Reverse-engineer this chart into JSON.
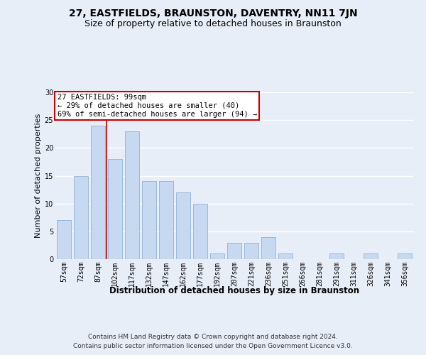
{
  "title": "27, EASTFIELDS, BRAUNSTON, DAVENTRY, NN11 7JN",
  "subtitle": "Size of property relative to detached houses in Braunston",
  "xlabel": "Distribution of detached houses by size in Braunston",
  "ylabel": "Number of detached properties",
  "categories": [
    "57sqm",
    "72sqm",
    "87sqm",
    "102sqm",
    "117sqm",
    "132sqm",
    "147sqm",
    "162sqm",
    "177sqm",
    "192sqm",
    "207sqm",
    "221sqm",
    "236sqm",
    "251sqm",
    "266sqm",
    "281sqm",
    "291sqm",
    "311sqm",
    "326sqm",
    "341sqm",
    "356sqm"
  ],
  "values": [
    7,
    15,
    24,
    18,
    23,
    14,
    14,
    12,
    10,
    1,
    3,
    3,
    4,
    1,
    0,
    0,
    1,
    0,
    1,
    0,
    1
  ],
  "bar_color": "#c6d9f0",
  "bar_edge_color": "#8db3d8",
  "property_line_color": "#cc0000",
  "annotation_text": "27 EASTFIELDS: 99sqm\n← 29% of detached houses are smaller (40)\n69% of semi-detached houses are larger (94) →",
  "annotation_box_color": "#ffffff",
  "annotation_box_edge_color": "#cc0000",
  "ylim": [
    0,
    30
  ],
  "yticks": [
    0,
    5,
    10,
    15,
    20,
    25,
    30
  ],
  "background_color": "#e8eef8",
  "axes_background_color": "#e8eef8",
  "grid_color": "#ffffff",
  "footer": "Contains HM Land Registry data © Crown copyright and database right 2024.\nContains public sector information licensed under the Open Government Licence v3.0.",
  "title_fontsize": 10,
  "subtitle_fontsize": 9,
  "xlabel_fontsize": 8.5,
  "ylabel_fontsize": 8,
  "tick_fontsize": 7,
  "footer_fontsize": 6.5,
  "annotation_fontsize": 7.5
}
